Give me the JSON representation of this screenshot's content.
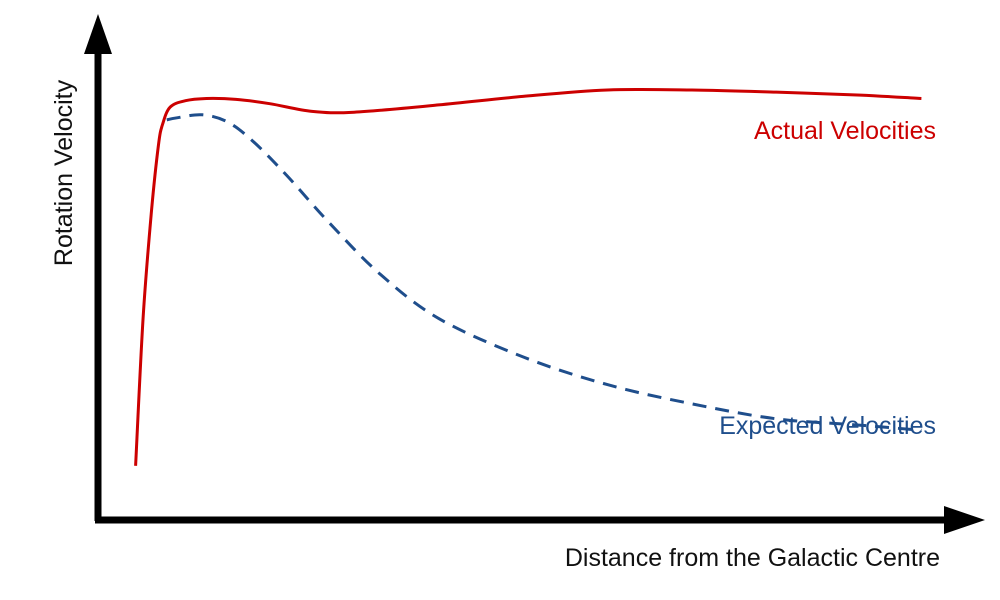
{
  "chart_data": {
    "type": "line",
    "xlabel": "Distance from the Galactic Centre",
    "ylabel": "Rotation Velocity",
    "xlim": [
      0,
      100
    ],
    "ylim": [
      0,
      100
    ],
    "grid": false,
    "ticks": false,
    "series": [
      {
        "name": "Actual Velocities",
        "color": "#cc0000",
        "style": "solid",
        "x": [
          4.1,
          5.0,
          6.0,
          6.8,
          7.3,
          8.2,
          10.0,
          12.5,
          16.0,
          20.0,
          25.0,
          30.0,
          40.0,
          50.0,
          60.0,
          70.0,
          80.0,
          90.0,
          97.2
        ],
        "y": [
          12.0,
          47.0,
          72.0,
          87.0,
          92.0,
          96.0,
          97.5,
          98.0,
          97.8,
          96.8,
          95.0,
          94.8,
          96.5,
          98.5,
          100.0,
          100.0,
          99.5,
          98.8,
          98.0
        ]
      },
      {
        "name": "Expected Velocities",
        "color": "#1f4e8c",
        "style": "dashed",
        "x": [
          7.8,
          9.0,
          12.0,
          15.0,
          18.0,
          22.0,
          27.0,
          33.0,
          40.0,
          50.0,
          60.0,
          70.0,
          80.0,
          90.0,
          97.2
        ],
        "y": [
          93.0,
          93.5,
          94.2,
          92.5,
          88.0,
          80.0,
          69.0,
          57.0,
          46.5,
          37.5,
          31.0,
          26.5,
          23.0,
          21.5,
          20.3
        ]
      }
    ]
  }
}
